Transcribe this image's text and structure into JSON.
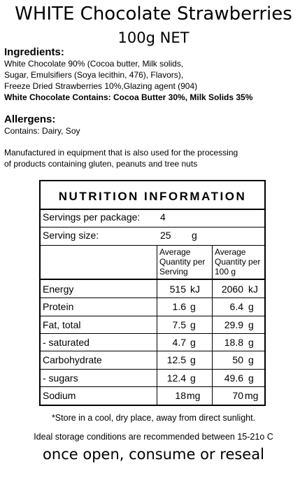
{
  "title": "WHITE Chocolate Strawberries",
  "subtitle": "100g NET",
  "ingredients": {
    "heading": "Ingredients:",
    "lines": [
      "White Chocolate 90% (Cocoa butter, Milk solids,",
      "Sugar, Emulsifiers (Soya lecithin, 476), Flavors),",
      "Freeze Dried Strawberries 10%,Glazing agent (904)"
    ],
    "contains_bold": "White Chocolate Contains: Cocoa Butter 30%, Milk Solids 35%"
  },
  "allergens": {
    "heading": "Allergens:",
    "line": "Contains: Dairy, Soy"
  },
  "manufacture": [
    "Manufactured in equipment that is also used for the processing",
    "of products containing gluten, peanuts and tree nuts"
  ],
  "nutrition": {
    "heading": "NUTRITION INFORMATION",
    "servings_label": "Servings per package:",
    "servings_value": "4",
    "serving_size_label": "Serving size:",
    "serving_size_value": "25",
    "serving_size_unit": "g",
    "col1_header": [
      "Average",
      "Quantity per",
      "Serving"
    ],
    "col2_header": [
      "Average",
      "Quantity per",
      "100 g"
    ],
    "rows": [
      {
        "name": "Energy",
        "serving": "515",
        "serving_unit": "kJ",
        "per100": "2060",
        "per100_unit": "kJ"
      },
      {
        "name": "Protein",
        "serving": "1.6",
        "serving_unit": "g",
        "per100": "6.4",
        "per100_unit": "g"
      },
      {
        "name": "Fat, total",
        "serving": "7.5",
        "serving_unit": "g",
        "per100": "29.9",
        "per100_unit": "g"
      },
      {
        "name": "- saturated",
        "serving": "4.7",
        "serving_unit": "g",
        "per100": "18.8",
        "per100_unit": "g"
      },
      {
        "name": "Carbohydrate",
        "serving": "12.5",
        "serving_unit": "g",
        "per100": "50",
        "per100_unit": "g"
      },
      {
        "name": "- sugars",
        "serving": "12.4",
        "serving_unit": "g",
        "per100": "49.6",
        "per100_unit": "g"
      },
      {
        "name": "Sodium",
        "serving": "18",
        "serving_unit": "mg",
        "per100": "70",
        "per100_unit": "mg"
      }
    ]
  },
  "footer": {
    "store": "*Store in a cool, dry place, away from direct sunlight.",
    "ideal": "Ideal storage conditions are recommended between 15-21o C",
    "once": "once open, consume or reseal"
  }
}
